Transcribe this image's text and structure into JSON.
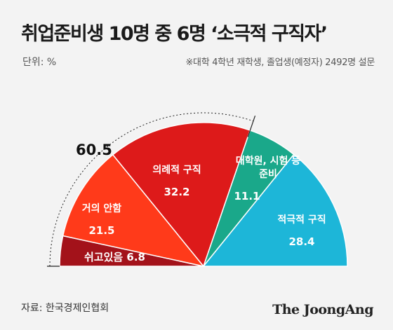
{
  "header": {
    "title": "취업준비생 10명 중 6명 ‘소극적 구직자’",
    "unit": "단위: %",
    "note": "※대학 4학년 재학생, 졸업생(예정자) 2492명 설문"
  },
  "footer": {
    "source": "자료: 한국경제인협회",
    "logo": "The JoongAng"
  },
  "colors": {
    "background": "#f3f3f3",
    "title": "#1a1a1a",
    "rest": "#a3121a",
    "noIntent": "#ff3a1a",
    "formal": "#dd1a1a",
    "prep": "#1aa88a",
    "active": "#1db6d8"
  },
  "chart_data": {
    "type": "pie",
    "subtype": "semicircle",
    "segments": [
      {
        "label": "쉬고있음",
        "value": 6.8,
        "color": "#a3121a"
      },
      {
        "label": "거의 안함",
        "value": 21.5,
        "color": "#ff3a1a"
      },
      {
        "label": "의례적 구직",
        "value": 32.2,
        "color": "#dd1a1a"
      },
      {
        "label": "대학원, 시험 등 준비",
        "value": 11.1,
        "color": "#1aa88a"
      },
      {
        "label": "적극적 구직",
        "value": 28.4,
        "color": "#1db6d8"
      }
    ],
    "group_total": {
      "value": "60.5",
      "segments": [
        "쉬고있음",
        "거의 안함",
        "의례적 구직"
      ]
    }
  }
}
